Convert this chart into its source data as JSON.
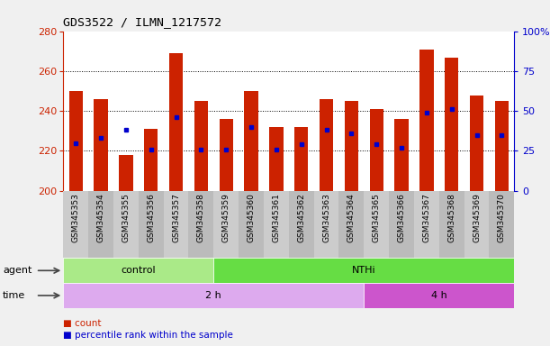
{
  "title": "GDS3522 / ILMN_1217572",
  "samples": [
    "GSM345353",
    "GSM345354",
    "GSM345355",
    "GSM345356",
    "GSM345357",
    "GSM345358",
    "GSM345359",
    "GSM345360",
    "GSM345361",
    "GSM345362",
    "GSM345363",
    "GSM345364",
    "GSM345365",
    "GSM345366",
    "GSM345367",
    "GSM345368",
    "GSM345369",
    "GSM345370"
  ],
  "counts": [
    250,
    246,
    218,
    231,
    269,
    245,
    236,
    250,
    232,
    232,
    246,
    245,
    241,
    236,
    271,
    267,
    248,
    245
  ],
  "percentile_ranks": [
    30,
    33,
    38,
    26,
    46,
    26,
    26,
    40,
    26,
    29,
    38,
    36,
    29,
    27,
    49,
    51,
    35,
    35
  ],
  "ymin": 200,
  "ymax": 280,
  "yticks_left": [
    200,
    220,
    240,
    260,
    280
  ],
  "yticks_right": [
    0,
    25,
    50,
    75,
    100
  ],
  "bar_color": "#cc2200",
  "dot_color": "#0000cc",
  "agent_groups": [
    {
      "label": "control",
      "start": 0,
      "end": 6,
      "color": "#aaea88"
    },
    {
      "label": "NTHi",
      "start": 6,
      "end": 18,
      "color": "#66dd44"
    }
  ],
  "time_groups": [
    {
      "label": "2 h",
      "start": 0,
      "end": 12,
      "color": "#ddaaee"
    },
    {
      "label": "4 h",
      "start": 12,
      "end": 18,
      "color": "#cc55cc"
    }
  ],
  "xtick_colors": [
    "#cccccc",
    "#bbbbbb"
  ],
  "agent_label": "agent",
  "time_label": "time",
  "legend_count": "count",
  "legend_percentile": "percentile rank within the sample",
  "fig_bg_color": "#f0f0f0",
  "plot_bg_color": "#ffffff",
  "left_axis_color": "#cc2200",
  "right_axis_color": "#0000cc"
}
